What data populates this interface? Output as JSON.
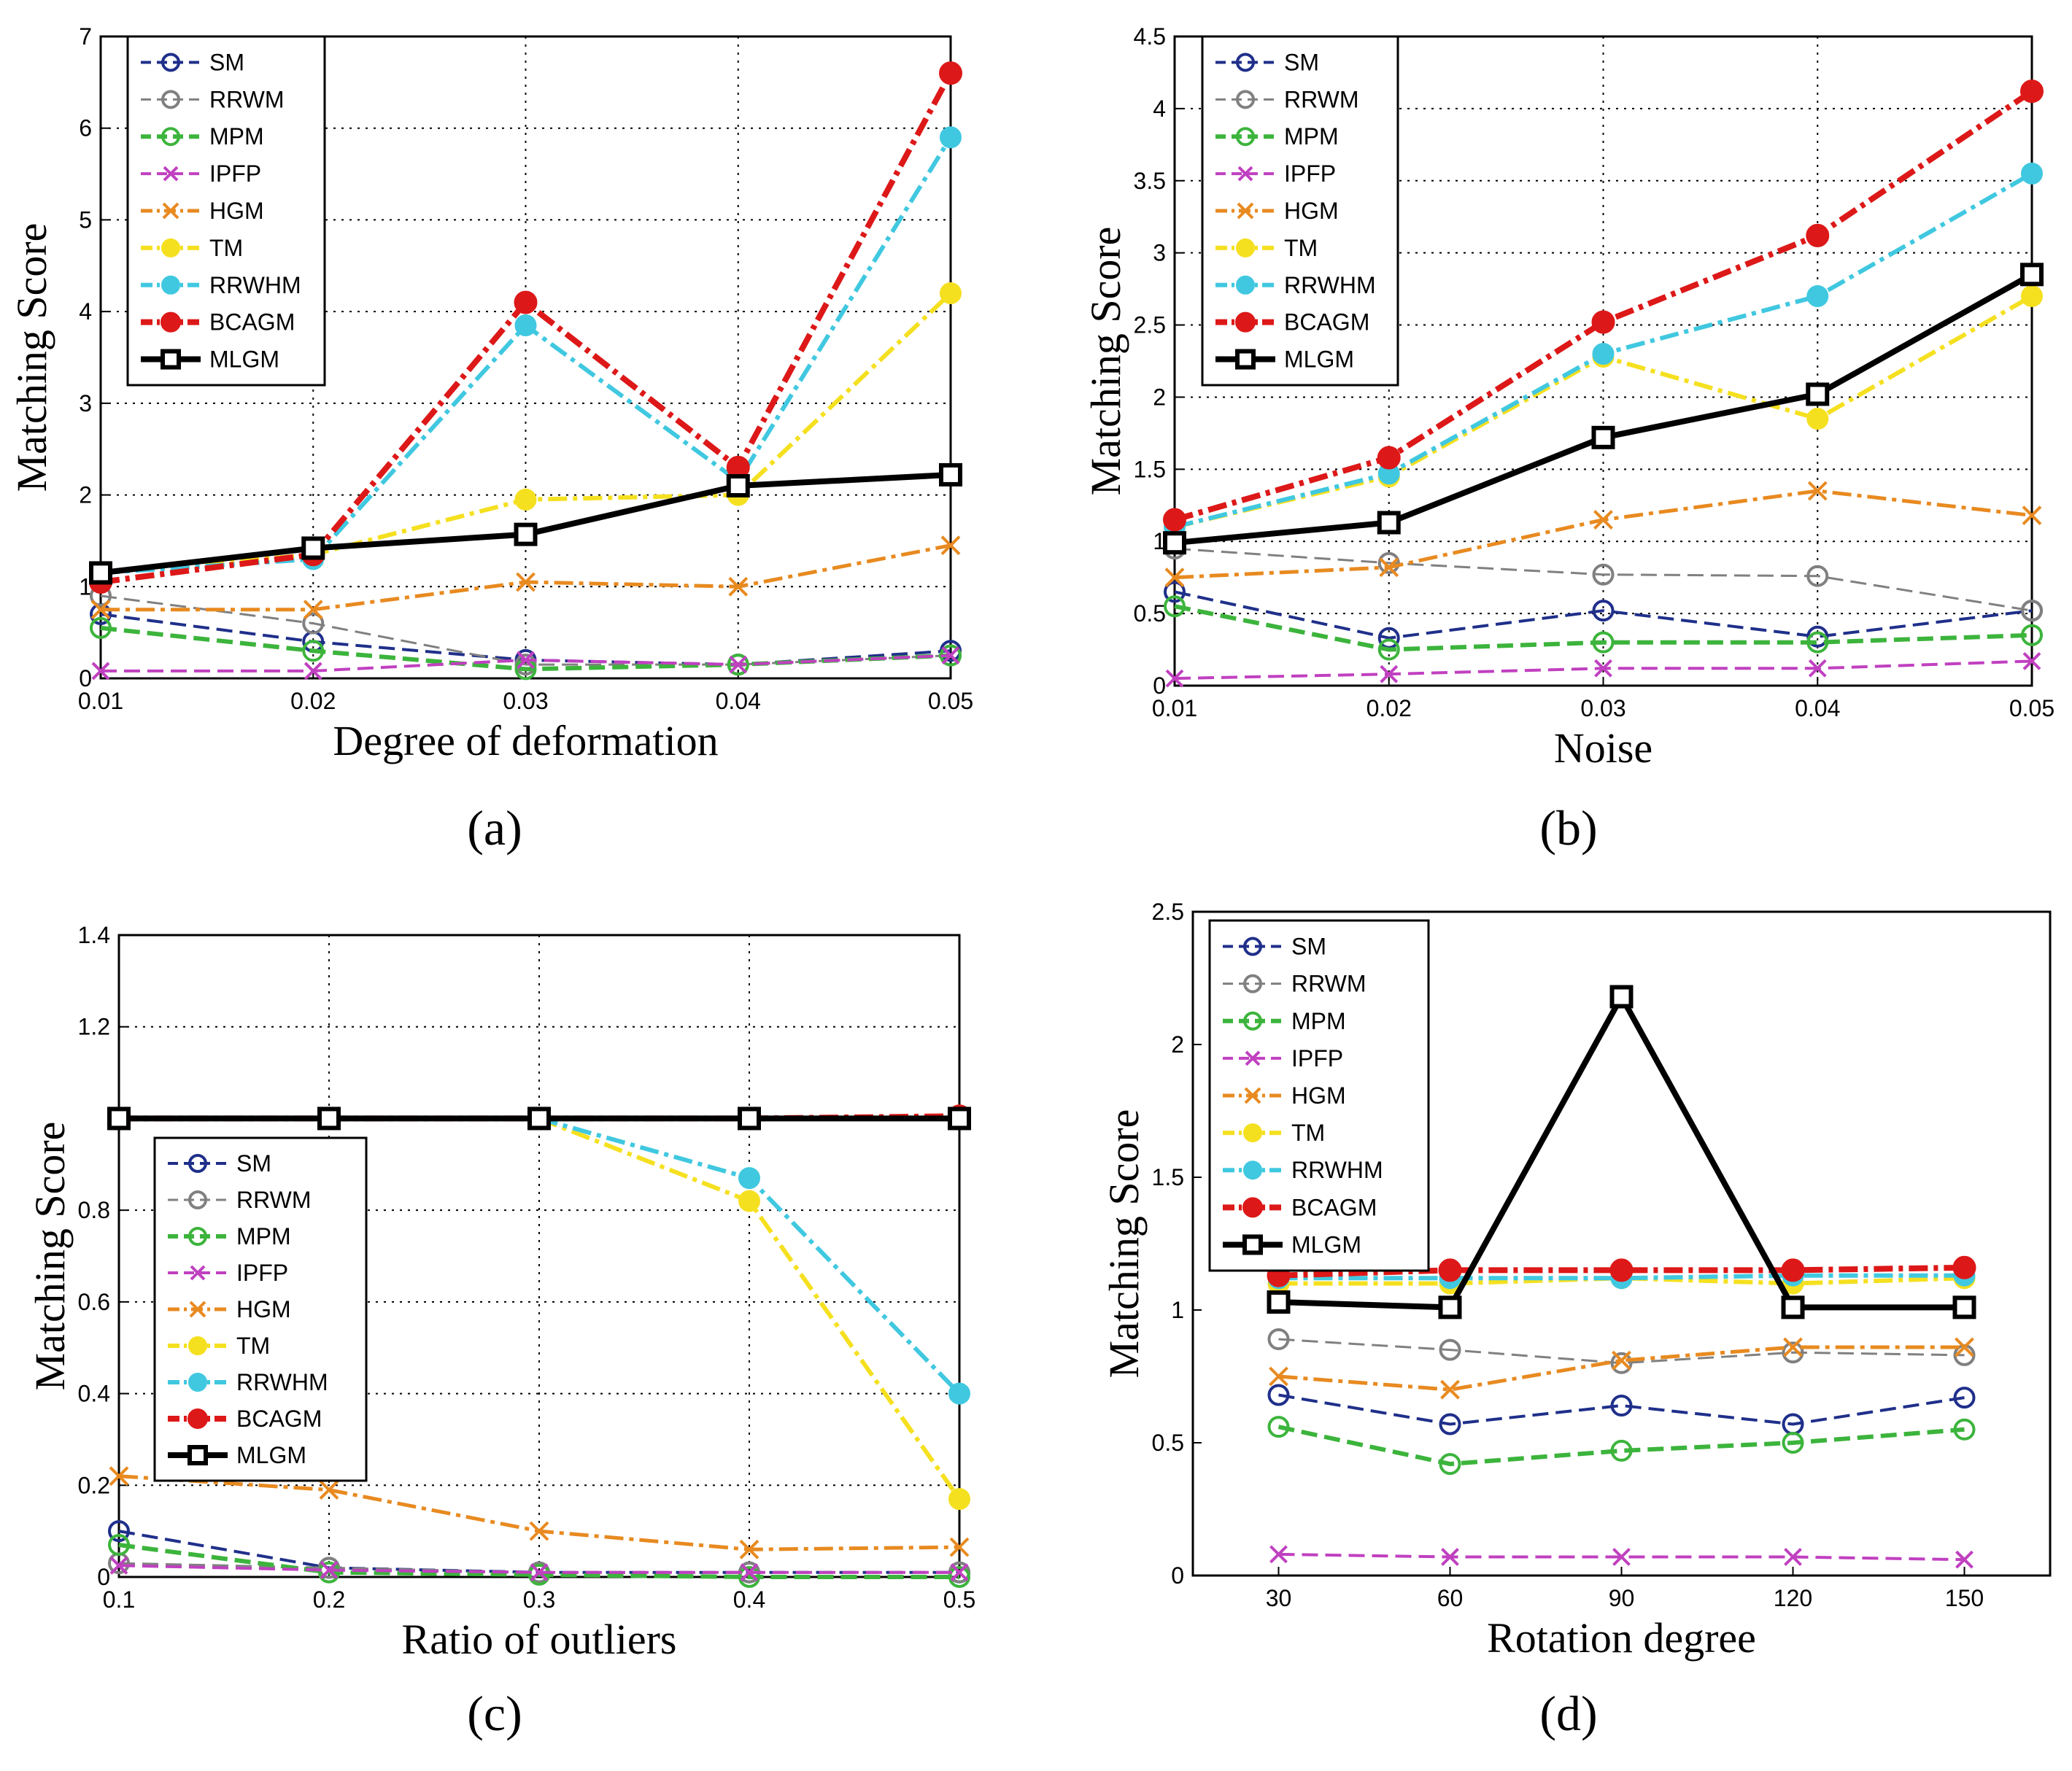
{
  "panels": [
    {
      "label": "(a)",
      "chart_data": {
        "type": "line",
        "xlabel": "Degree of deformation",
        "ylabel": "Matching Score",
        "x": [
          0.01,
          0.02,
          0.03,
          0.04,
          0.05
        ],
        "xticks": [
          "0.01",
          "0.02",
          "0.03",
          "0.04",
          "0.05"
        ],
        "xlim": [
          0.01,
          0.05
        ],
        "yticks": [
          "0",
          "1",
          "2",
          "3",
          "4",
          "5",
          "6",
          "7"
        ],
        "ylim": [
          0,
          7
        ],
        "grid": true,
        "legend": "top-left",
        "series": [
          {
            "name": "SM",
            "color": "#1f2f8a",
            "values": [
              0.7,
              0.4,
              0.2,
              0.15,
              0.3
            ]
          },
          {
            "name": "RRWM",
            "color": "#808080",
            "values": [
              0.9,
              0.6,
              0.15,
              0.15,
              0.25
            ]
          },
          {
            "name": "MPM",
            "color": "#3cb43c",
            "values": [
              0.55,
              0.3,
              0.1,
              0.15,
              0.25
            ]
          },
          {
            "name": "IPFP",
            "color": "#c040c0",
            "values": [
              0.08,
              0.08,
              0.2,
              0.15,
              0.25
            ]
          },
          {
            "name": "HGM",
            "color": "#e88a20",
            "values": [
              0.75,
              0.75,
              1.05,
              1.0,
              1.45
            ]
          },
          {
            "name": "TM",
            "color": "#f5e020",
            "values": [
              1.15,
              1.35,
              1.95,
              2.0,
              4.2
            ]
          },
          {
            "name": "RRWHM",
            "color": "#40c8e0",
            "values": [
              1.15,
              1.3,
              3.85,
              2.15,
              5.9
            ]
          },
          {
            "name": "BCAGM",
            "color": "#dd1818",
            "values": [
              1.05,
              1.35,
              4.1,
              2.3,
              6.6
            ]
          },
          {
            "name": "MLGM",
            "color": "#000000",
            "values": [
              1.15,
              1.42,
              1.57,
              2.1,
              2.22
            ]
          }
        ]
      }
    },
    {
      "label": "(b)",
      "chart_data": {
        "type": "line",
        "xlabel": "Noise",
        "ylabel": "Matching Score",
        "x": [
          0.01,
          0.02,
          0.03,
          0.04,
          0.05
        ],
        "xticks": [
          "0.01",
          "0.02",
          "0.03",
          "0.04",
          "0.05"
        ],
        "xlim": [
          0.01,
          0.05
        ],
        "yticks": [
          "0",
          "0.5",
          "1",
          "1.5",
          "2",
          "2.5",
          "3",
          "3.5",
          "4",
          "4.5"
        ],
        "ylim": [
          0,
          4.5
        ],
        "grid": true,
        "legend": "top-left",
        "series": [
          {
            "name": "SM",
            "color": "#1f2f8a",
            "values": [
              0.65,
              0.33,
              0.52,
              0.34,
              0.52
            ]
          },
          {
            "name": "RRWM",
            "color": "#808080",
            "values": [
              0.95,
              0.85,
              0.77,
              0.76,
              0.52
            ]
          },
          {
            "name": "MPM",
            "color": "#3cb43c",
            "values": [
              0.55,
              0.25,
              0.3,
              0.3,
              0.35
            ]
          },
          {
            "name": "IPFP",
            "color": "#c040c0",
            "values": [
              0.05,
              0.08,
              0.12,
              0.12,
              0.17
            ]
          },
          {
            "name": "HGM",
            "color": "#e88a20",
            "values": [
              0.75,
              0.82,
              1.15,
              1.35,
              1.18
            ]
          },
          {
            "name": "TM",
            "color": "#f5e020",
            "values": [
              1.1,
              1.45,
              2.28,
              1.85,
              2.7
            ]
          },
          {
            "name": "RRWHM",
            "color": "#40c8e0",
            "values": [
              1.1,
              1.47,
              2.3,
              2.7,
              3.55
            ]
          },
          {
            "name": "BCAGM",
            "color": "#dd1818",
            "values": [
              1.15,
              1.58,
              2.52,
              3.12,
              4.12
            ]
          },
          {
            "name": "MLGM",
            "color": "#000000",
            "values": [
              0.99,
              1.13,
              1.72,
              2.02,
              2.85
            ]
          }
        ]
      }
    },
    {
      "label": "(c)",
      "chart_data": {
        "type": "line",
        "xlabel": "Ratio of outliers",
        "ylabel": "Matching Score",
        "x": [
          0.1,
          0.2,
          0.3,
          0.4,
          0.5
        ],
        "xticks": [
          "0.1",
          "0.2",
          "0.3",
          "0.4",
          "0.5"
        ],
        "xlim": [
          0.1,
          0.5
        ],
        "yticks": [
          "0",
          "0.2",
          "0.4",
          "0.6",
          "0.8",
          "1.2",
          "1.4"
        ],
        "yticks_values": [
          0,
          0.2,
          0.4,
          0.6,
          0.8,
          1.2,
          1.4
        ],
        "ylim": [
          0,
          1.4
        ],
        "grid": true,
        "legend": "center-left",
        "series": [
          {
            "name": "SM",
            "color": "#1f2f8a",
            "values": [
              0.1,
              0.02,
              0.01,
              0.01,
              0.01
            ]
          },
          {
            "name": "RRWM",
            "color": "#808080",
            "values": [
              0.03,
              0.02,
              0.01,
              0.01,
              0.01
            ]
          },
          {
            "name": "MPM",
            "color": "#3cb43c",
            "values": [
              0.07,
              0.01,
              0.005,
              0.0,
              0.0
            ]
          },
          {
            "name": "IPFP",
            "color": "#c040c0",
            "values": [
              0.025,
              0.015,
              0.01,
              0.01,
              0.01
            ]
          },
          {
            "name": "HGM",
            "color": "#e88a20",
            "values": [
              0.22,
              0.19,
              0.1,
              0.06,
              0.065
            ]
          },
          {
            "name": "TM",
            "color": "#f5e020",
            "values": [
              1.0,
              1.0,
              1.0,
              0.82,
              0.17
            ]
          },
          {
            "name": "RRWHM",
            "color": "#40c8e0",
            "values": [
              1.0,
              1.0,
              1.0,
              0.87,
              0.4
            ]
          },
          {
            "name": "BCAGM",
            "color": "#dd1818",
            "values": [
              1.0,
              1.0,
              1.0,
              1.0,
              1.005
            ]
          },
          {
            "name": "MLGM",
            "color": "#000000",
            "values": [
              1.0,
              1.0,
              1.0,
              1.0,
              1.0
            ]
          }
        ]
      }
    },
    {
      "label": "(d)",
      "chart_data": {
        "type": "line",
        "xlabel": "Rotation degree",
        "ylabel": "Matching Score",
        "x": [
          30,
          60,
          90,
          120,
          150
        ],
        "xticks": [
          "30",
          "60",
          "90",
          "120",
          "150"
        ],
        "xlim": [
          15,
          165
        ],
        "yticks": [
          "0",
          "0.5",
          "1",
          "1.5",
          "2",
          "2.5"
        ],
        "ylim": [
          0,
          2.5
        ],
        "grid": false,
        "legend": "top-left",
        "series": [
          {
            "name": "SM",
            "color": "#1f2f8a",
            "values": [
              0.68,
              0.57,
              0.64,
              0.57,
              0.67
            ]
          },
          {
            "name": "RRWM",
            "color": "#808080",
            "values": [
              0.89,
              0.85,
              0.8,
              0.84,
              0.83
            ]
          },
          {
            "name": "MPM",
            "color": "#3cb43c",
            "values": [
              0.56,
              0.42,
              0.47,
              0.5,
              0.55
            ]
          },
          {
            "name": "IPFP",
            "color": "#c040c0",
            "values": [
              0.08,
              0.07,
              0.07,
              0.07,
              0.06
            ]
          },
          {
            "name": "HGM",
            "color": "#e88a20",
            "values": [
              0.75,
              0.7,
              0.81,
              0.86,
              0.86
            ]
          },
          {
            "name": "TM",
            "color": "#f5e020",
            "values": [
              1.1,
              1.1,
              1.12,
              1.1,
              1.12
            ]
          },
          {
            "name": "RRWHM",
            "color": "#40c8e0",
            "values": [
              1.12,
              1.12,
              1.12,
              1.13,
              1.13
            ]
          },
          {
            "name": "BCAGM",
            "color": "#dd1818",
            "values": [
              1.13,
              1.15,
              1.15,
              1.15,
              1.16
            ]
          },
          {
            "name": "MLGM",
            "color": "#000000",
            "values": [
              1.03,
              1.01,
              2.18,
              1.01,
              1.01
            ]
          }
        ]
      }
    }
  ]
}
